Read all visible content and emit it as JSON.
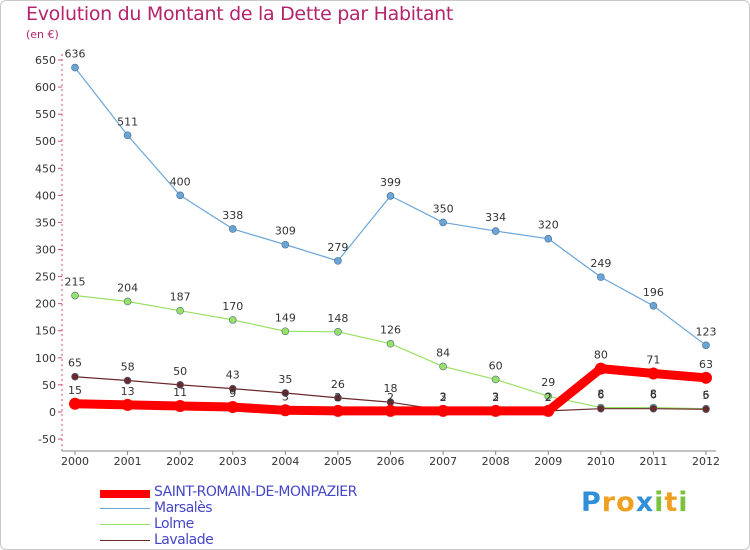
{
  "header": {
    "title": "Evolution du Montant de la Dette par Habitant",
    "subtitle": "(en €)"
  },
  "chart_data": {
    "type": "line",
    "title": "Evolution du Montant de la Dette par Habitant",
    "ylabel": "(en €)",
    "xlabel": "",
    "ylim": [
      -50,
      650
    ],
    "yticks": [
      -50,
      0,
      50,
      100,
      150,
      200,
      250,
      300,
      350,
      400,
      450,
      500,
      550,
      600,
      650
    ],
    "grid": false,
    "legend_position": "bottom-left",
    "x": [
      "2000",
      "2001",
      "2002",
      "2003",
      "2004",
      "2005",
      "2006",
      "2007",
      "2008",
      "2009",
      "2010",
      "2011",
      "2012"
    ],
    "series": [
      {
        "name": "SAINT-ROMAIN-DE-MONPAZIER",
        "color": "#ff0000",
        "values": [
          15,
          13,
          11,
          9,
          3,
          2,
          2,
          2,
          2,
          2,
          80,
          71,
          63
        ],
        "labels": [
          "15",
          "13",
          "11",
          "9",
          "3",
          "2",
          "2",
          "2",
          "2",
          "2",
          "80",
          "71",
          "63"
        ]
      },
      {
        "name": "Marsalès",
        "color": "#6aa5d8",
        "values": [
          636,
          511,
          400,
          338,
          309,
          279,
          399,
          350,
          334,
          320,
          249,
          196,
          123
        ],
        "labels": [
          "636",
          "511",
          "400",
          "338",
          "309",
          "279",
          "399",
          "350",
          "334",
          "320",
          "249",
          "196",
          "123"
        ]
      },
      {
        "name": "Lolme",
        "color": "#99e066",
        "values": [
          215,
          204,
          187,
          170,
          149,
          148,
          126,
          84,
          60,
          29,
          8,
          8,
          6
        ],
        "labels": [
          "215",
          "204",
          "187",
          "170",
          "149",
          "148",
          "126",
          "84",
          "60",
          "29",
          "8",
          "8",
          "6"
        ]
      },
      {
        "name": "Lavalade",
        "color": "#6b2a2a",
        "values": [
          65,
          58,
          50,
          43,
          35,
          26,
          18,
          3,
          3,
          2,
          6,
          6,
          5
        ],
        "labels": [
          "65",
          "58",
          "50",
          "43",
          "35",
          "26",
          "18",
          "3",
          "3",
          "2",
          "6",
          "6",
          "5"
        ]
      }
    ]
  },
  "legend": {
    "items": [
      {
        "label": "SAINT-ROMAIN-DE-MONPAZIER",
        "color": "#ff0000"
      },
      {
        "label": "Marsalès",
        "color": "#6aa5d8"
      },
      {
        "label": "Lolme",
        "color": "#99e066"
      },
      {
        "label": "Lavalade",
        "color": "#6b2a2a"
      }
    ]
  },
  "logo": {
    "letters": [
      "P",
      "r",
      "o",
      "x",
      "i",
      "t",
      "i"
    ],
    "colors": [
      "#2f8fd8",
      "#f0a020",
      "#f0a020",
      "#2f8fd8",
      "#7cc23c",
      "#f0a020",
      "#7cc23c"
    ]
  }
}
